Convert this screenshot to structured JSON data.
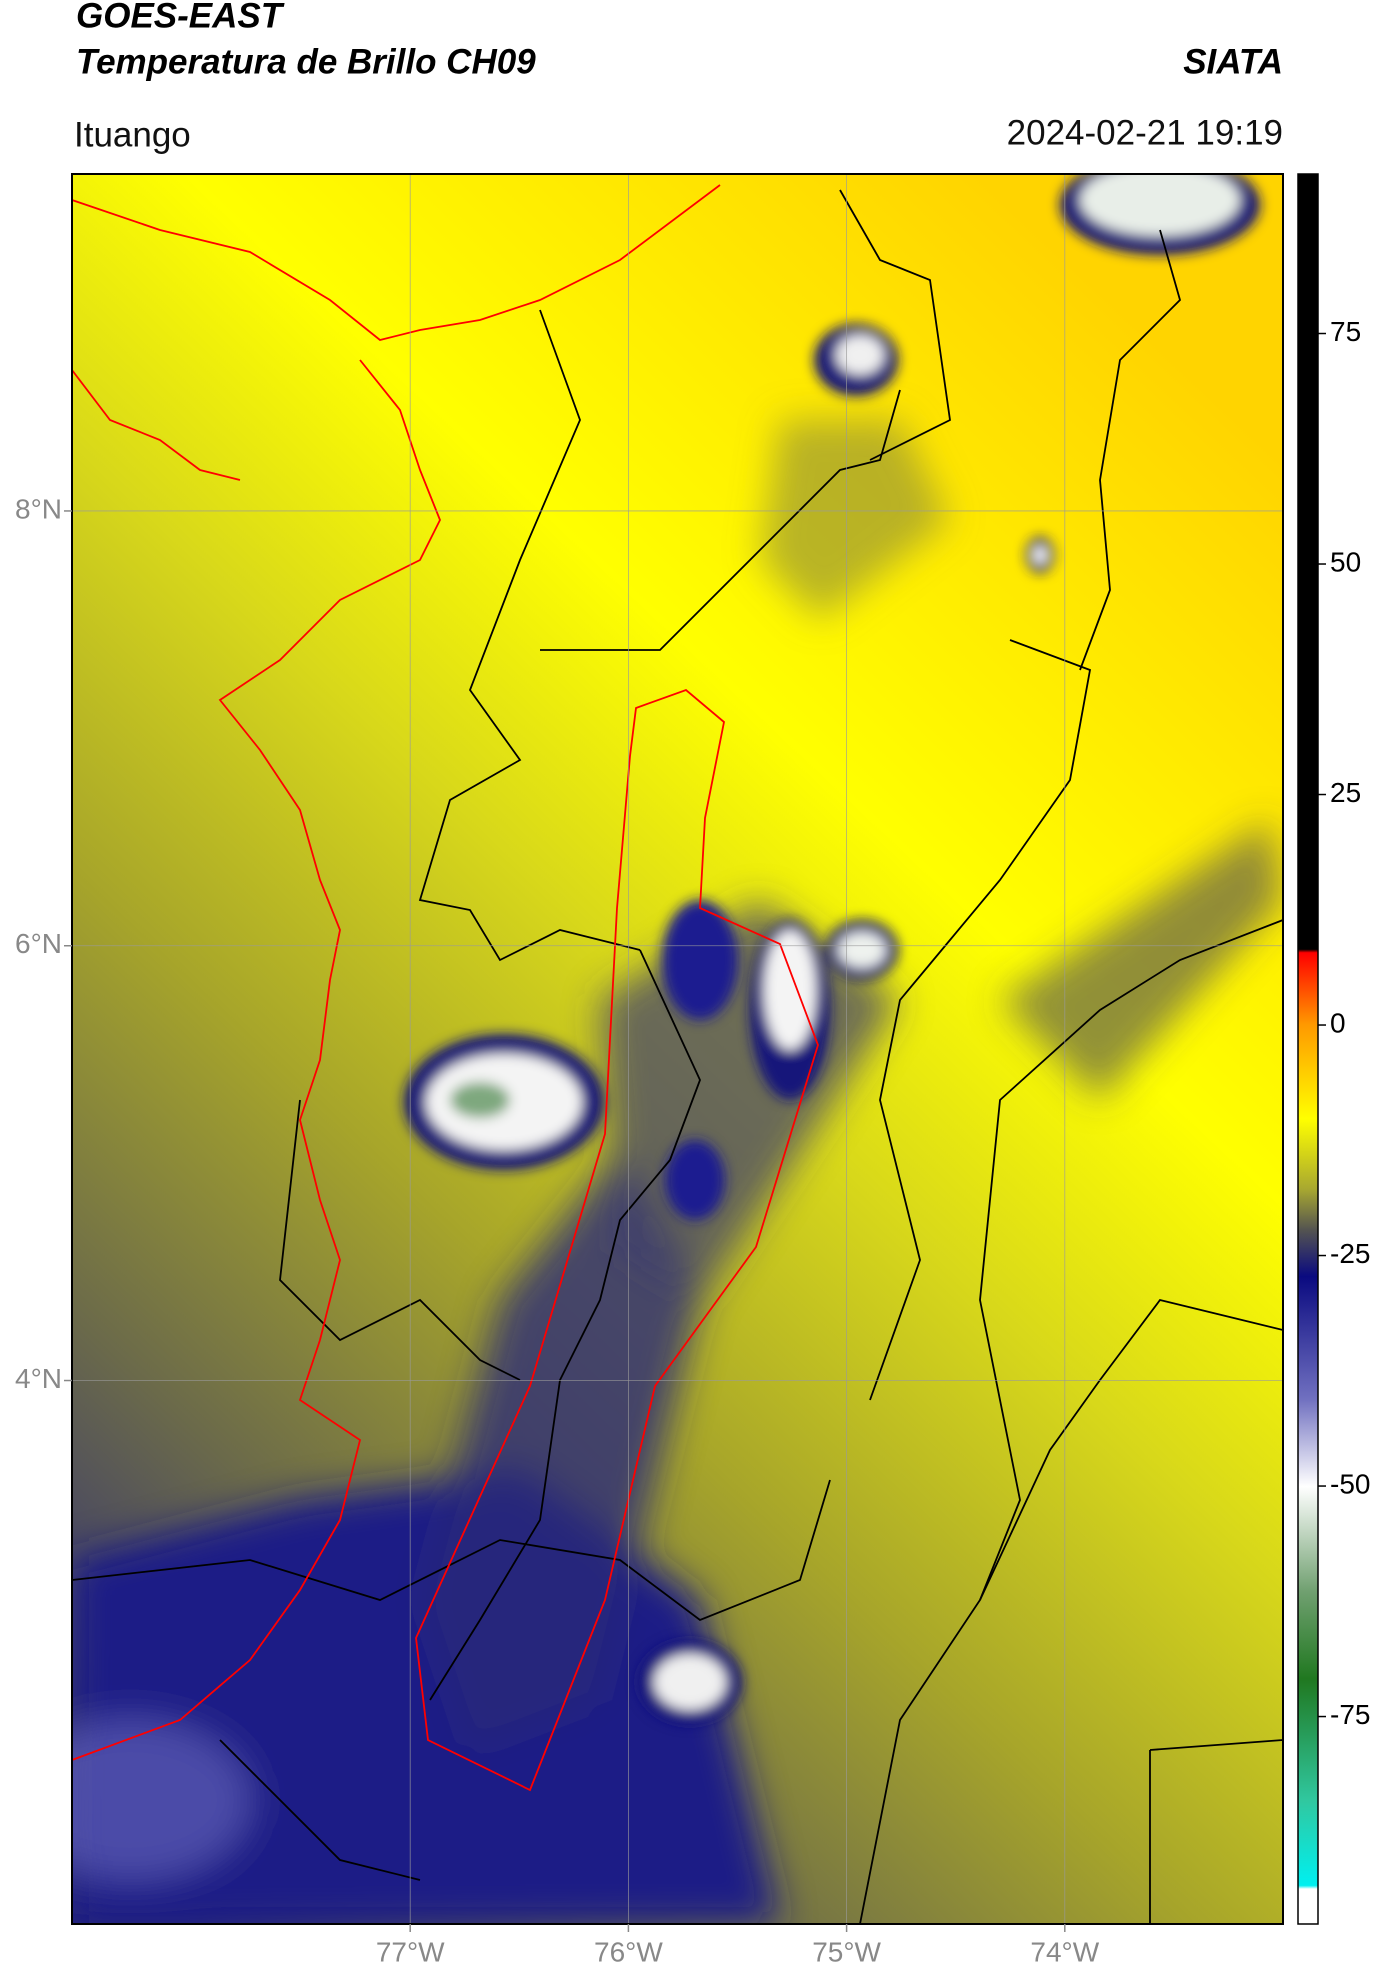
{
  "header": {
    "title": "GOES-EAST",
    "subtitle": "Temperatura de Brillo CH09",
    "source": "SIATA",
    "location": "Ituango",
    "datetime": "2024-02-21 19:19"
  },
  "map": {
    "type": "map",
    "xlim": [
      -78.55,
      -73.0
    ],
    "ylim": [
      1.5,
      9.55
    ],
    "xticks": [
      {
        "value": -77,
        "label": "77°W"
      },
      {
        "value": -76,
        "label": "76°W"
      },
      {
        "value": -75,
        "label": "75°W"
      },
      {
        "value": -74,
        "label": "74°W"
      }
    ],
    "yticks": [
      {
        "value": 8,
        "label": "8°N"
      },
      {
        "value": 6,
        "label": "6°N"
      },
      {
        "value": 4,
        "label": "4°N"
      }
    ],
    "grid": true
  },
  "colorbar": {
    "lim": [
      -97.5,
      92.3
    ],
    "ticks": [
      75,
      50,
      25,
      0,
      -25,
      -50,
      -75
    ]
  }
}
